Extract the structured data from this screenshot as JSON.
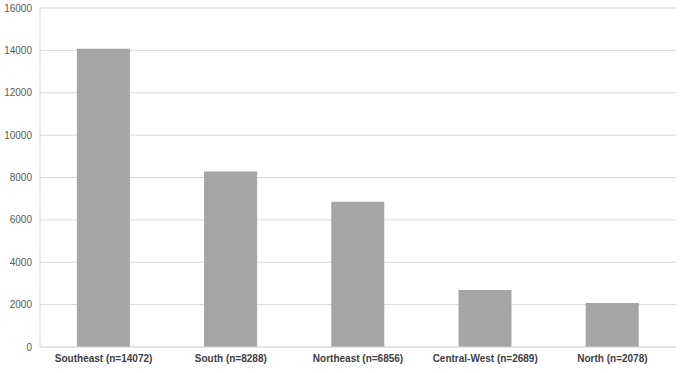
{
  "chart_data": {
    "type": "bar",
    "categories": [
      "Southeast (n=14072)",
      "South (n=8288)",
      "Northeast (n=6856)",
      "Central-West (n=2689)",
      "North (n=2078)"
    ],
    "values": [
      14072,
      8288,
      6856,
      2689,
      2078
    ],
    "color": "#a5a5a5",
    "ylim": [
      0,
      16000
    ],
    "yticks": [
      0,
      2000,
      4000,
      6000,
      8000,
      10000,
      12000,
      14000,
      16000
    ],
    "grid": true
  }
}
